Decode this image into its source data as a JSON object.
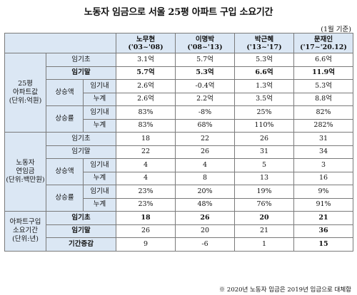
{
  "title": "노동자 임금으로 서울 25평 아파트 구입 소요기간",
  "unit_note": "(1월 기준)",
  "footnote": "※ 2020년 노동자 임금은 2019년 임금으로 대체함",
  "header": [
    {
      "name": "노무현",
      "period": "('03~'08)"
    },
    {
      "name": "이명박",
      "period": "('08~'13)"
    },
    {
      "name": "박근혜",
      "period": "('13~'17)"
    },
    {
      "name": "문재인",
      "period": "('17~'20.12)"
    }
  ],
  "sections": {
    "apt": {
      "title": [
        "25평",
        "아파트값",
        "(단위:억원)"
      ],
      "start": {
        "label": "임기초",
        "values": [
          "3.1억",
          "5.7억",
          "5.3억",
          "6.6억"
        ]
      },
      "end": {
        "label": "임기말",
        "values": [
          "5.7억",
          "5.3억",
          "6.6억",
          "11.9억"
        ]
      },
      "increase": {
        "label": "상승액",
        "term": {
          "label": "임기내",
          "values": [
            "2.6억",
            "-0.4억",
            "1.3억",
            "5.3억"
          ]
        },
        "cum": {
          "label": "누계",
          "values": [
            "2.6억",
            "2.2억",
            "3.5억",
            "8.8억"
          ]
        }
      },
      "rate": {
        "label": "상승률",
        "term": {
          "label": "임기내",
          "values": [
            "83%",
            "-8%",
            "25%",
            "82%"
          ]
        },
        "cum": {
          "label": "누계",
          "values": [
            "83%",
            "68%",
            "110%",
            "282%"
          ]
        }
      }
    },
    "wage": {
      "title": [
        "노동자",
        "연임금",
        "(단위:백만원)"
      ],
      "start": {
        "label": "임기초",
        "values": [
          "18",
          "22",
          "26",
          "31"
        ]
      },
      "end": {
        "label": "임기말",
        "values": [
          "22",
          "26",
          "31",
          "34"
        ]
      },
      "increase": {
        "label": "상승액",
        "term": {
          "label": "임기내",
          "values": [
            "4",
            "4",
            "5",
            "3"
          ]
        },
        "cum": {
          "label": "누계",
          "values": [
            "4",
            "8",
            "13",
            "16"
          ]
        }
      },
      "rate": {
        "label": "상승률",
        "term": {
          "label": "임기내",
          "values": [
            "23%",
            "20%",
            "19%",
            "9%"
          ]
        },
        "cum": {
          "label": "누계",
          "values": [
            "23%",
            "48%",
            "76%",
            "91%"
          ]
        }
      }
    },
    "period": {
      "title": [
        "아파트구입",
        "소요기간",
        "(단위:년)"
      ],
      "start": {
        "label": "임기초",
        "values": [
          "18",
          "26",
          "20",
          "21"
        ]
      },
      "end": {
        "label": "임기말",
        "values": [
          "26",
          "20",
          "21",
          "36"
        ]
      },
      "change": {
        "label": "기간증감",
        "values": [
          "9",
          "-6",
          "1",
          "15"
        ]
      }
    }
  }
}
